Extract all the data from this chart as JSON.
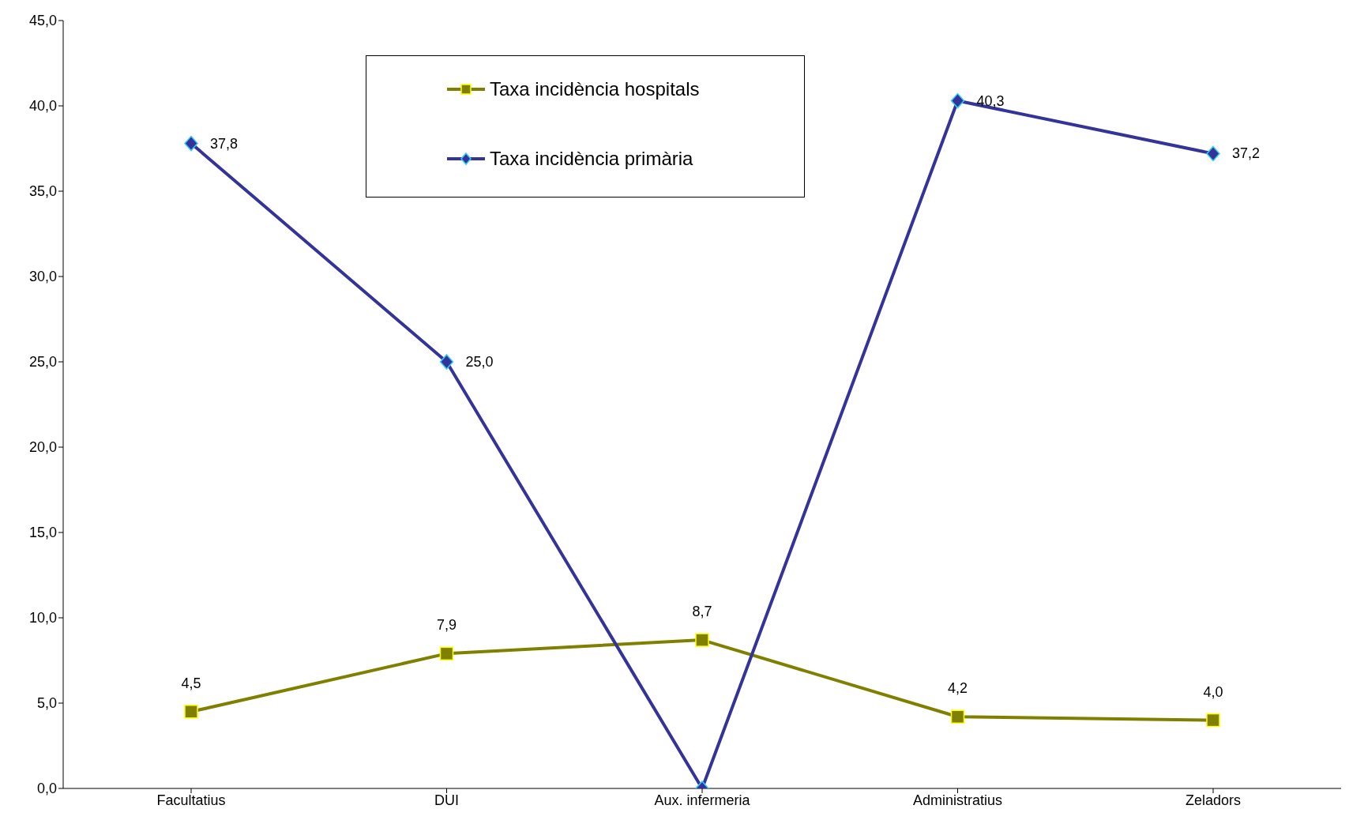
{
  "chart_data": {
    "type": "line",
    "categories": [
      "Facultatius",
      "DUI",
      "Aux. infermeria",
      "Administratius",
      "Zeladors"
    ],
    "series": [
      {
        "name": "Taxa incidència hospitals",
        "color": "#808000",
        "marker": "square",
        "values": [
          4.5,
          7.9,
          8.7,
          4.2,
          4.0
        ],
        "value_labels": [
          "4,5",
          "7,9",
          "8,7",
          "4,2",
          "4,0"
        ]
      },
      {
        "name": "Taxa incidència primària",
        "color": "#333399",
        "marker": "diamond",
        "values": [
          37.8,
          25.0,
          0,
          40.3,
          37.2
        ],
        "value_labels": [
          "37,8",
          "25,0",
          null,
          "40,3",
          "37,2"
        ]
      }
    ],
    "ylim": [
      0,
      45
    ],
    "yticks": [
      {
        "value": 0,
        "label": "0,0"
      },
      {
        "value": 5,
        "label": "5,0"
      },
      {
        "value": 10,
        "label": "10,0"
      },
      {
        "value": 15,
        "label": "15,0"
      },
      {
        "value": 20,
        "label": "20,0"
      },
      {
        "value": 25,
        "label": "25,0"
      },
      {
        "value": 30,
        "label": "30,0"
      },
      {
        "value": 35,
        "label": "35,0"
      },
      {
        "value": 40,
        "label": "40,0"
      },
      {
        "value": 45,
        "label": "45,0"
      }
    ],
    "legend": "top",
    "line_style": "solid"
  }
}
